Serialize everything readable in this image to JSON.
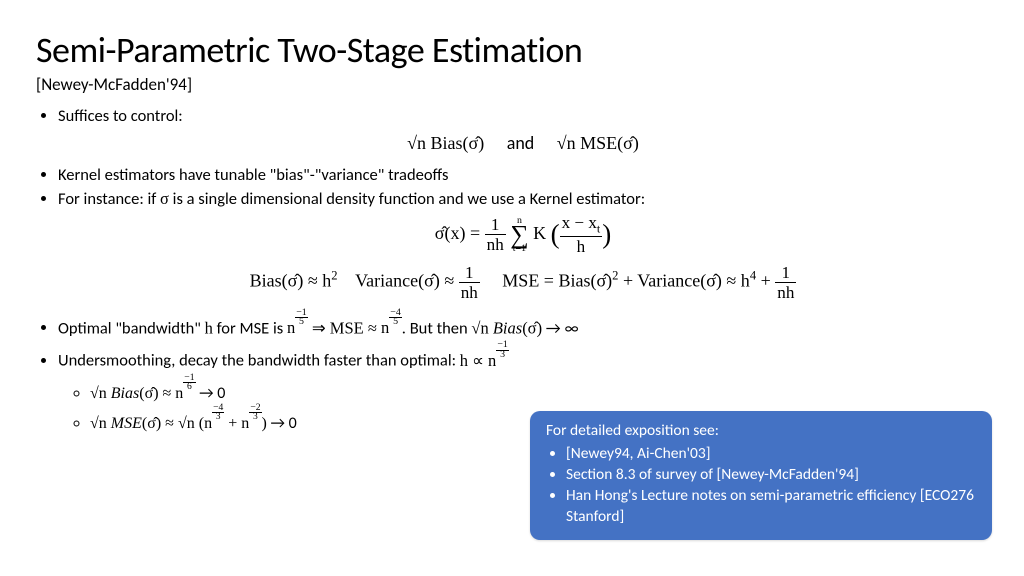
{
  "title": "Semi-Parametric Two-Stage Estimation",
  "subtitle": "[Newey-McFadden'94]",
  "bullets": {
    "b1": "Suffices to control:",
    "eq1_left": "√n Bias(σ̂)",
    "eq1_mid": "and",
    "eq1_right": "√n MSE(σ̂)",
    "b2": "Kernel estimators have tunable \"bias\"-\"variance\" tradeoffs",
    "b3_pre": "For instance: if ",
    "b3_sigma": "σ",
    "b3_post": " is a single dimensional density function and we use a Kernel estimator:",
    "b4_pre": "Optimal \"bandwidth\" ",
    "b4_h": "h",
    "b4_mid1": " for MSE is ",
    "b4_mid2": " ⇒ MSE ≈ ",
    "b4_mid3": ". But then ",
    "b4_end": " → ∞",
    "b5_pre": "Undersmoothing, decay the bandwidth faster than optimal: ",
    "sub1_end": " → 0",
    "sub2_end": " → 0"
  },
  "callout": {
    "header": "For detailed exposition see:",
    "i1": "[Newey94, Ai-Chen'03]",
    "i2": "Section 8.3 of survey of [Newey-McFadden'94]",
    "i3": "Han Hong's Lecture notes on semi-parametric efficiency [ECO276 Stanford]"
  },
  "style": {
    "callout_bg": "#4472c4",
    "callout_fg": "#ffffff",
    "title_fontsize": 36,
    "body_fontsize": 16.5
  }
}
